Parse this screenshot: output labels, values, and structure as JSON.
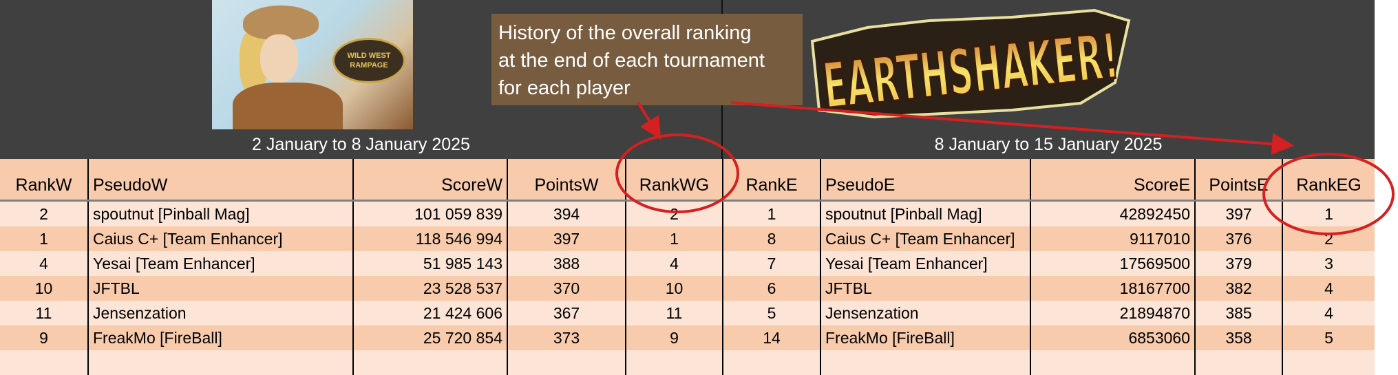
{
  "annotation": {
    "text_lines": [
      "History of the overall ranking",
      "at the end of each tournament",
      "for each player"
    ]
  },
  "left": {
    "logo_text": [
      "WILD WEST",
      "RAMPAGE"
    ],
    "title": "2 January to 8 January 2025",
    "columns": [
      "RankW",
      "PseudoW",
      "ScoreW",
      "PointsW",
      "RankWG"
    ],
    "rows": [
      [
        "2",
        "spoutnut [Pinball Mag]",
        "101 059 839",
        "394",
        "2"
      ],
      [
        "1",
        "Caius C+ [Team Enhancer]",
        "118 546 994",
        "397",
        "1"
      ],
      [
        "4",
        "Yesai [Team Enhancer]",
        "51 985 143",
        "388",
        "4"
      ],
      [
        "10",
        "JFTBL",
        "23 528 537",
        "370",
        "10"
      ],
      [
        "11",
        "Jensenzation",
        "21 424 606",
        "367",
        "11"
      ],
      [
        "9",
        "FreakMo [FireBall]",
        "25 720 854",
        "373",
        "9"
      ]
    ]
  },
  "right": {
    "logo_text": "EARTHSHAKER!",
    "title": "8 January to 15 January 2025",
    "columns": [
      "RankE",
      "PseudoE",
      "ScoreE",
      "PointsE",
      "RankEG"
    ],
    "rows": [
      [
        "1",
        "spoutnut [Pinball Mag]",
        "42892450",
        "397",
        "1"
      ],
      [
        "8",
        "Caius C+ [Team Enhancer]",
        "9117010",
        "376",
        "2"
      ],
      [
        "7",
        "Yesai [Team Enhancer]",
        "17569500",
        "379",
        "3"
      ],
      [
        "6",
        "JFTBL",
        "18167700",
        "382",
        "4"
      ],
      [
        "5",
        "Jensenzation",
        "21894870",
        "385",
        "4"
      ],
      [
        "14",
        "FreakMo [FireBall]",
        "6853060",
        "358",
        "5"
      ]
    ]
  },
  "colors": {
    "background": "#404040",
    "header": "#f8cbad",
    "row_light": "#fce4d6",
    "row_dark": "#f8cbad",
    "annotation_box": "#785c40",
    "highlight": "#d42020"
  }
}
